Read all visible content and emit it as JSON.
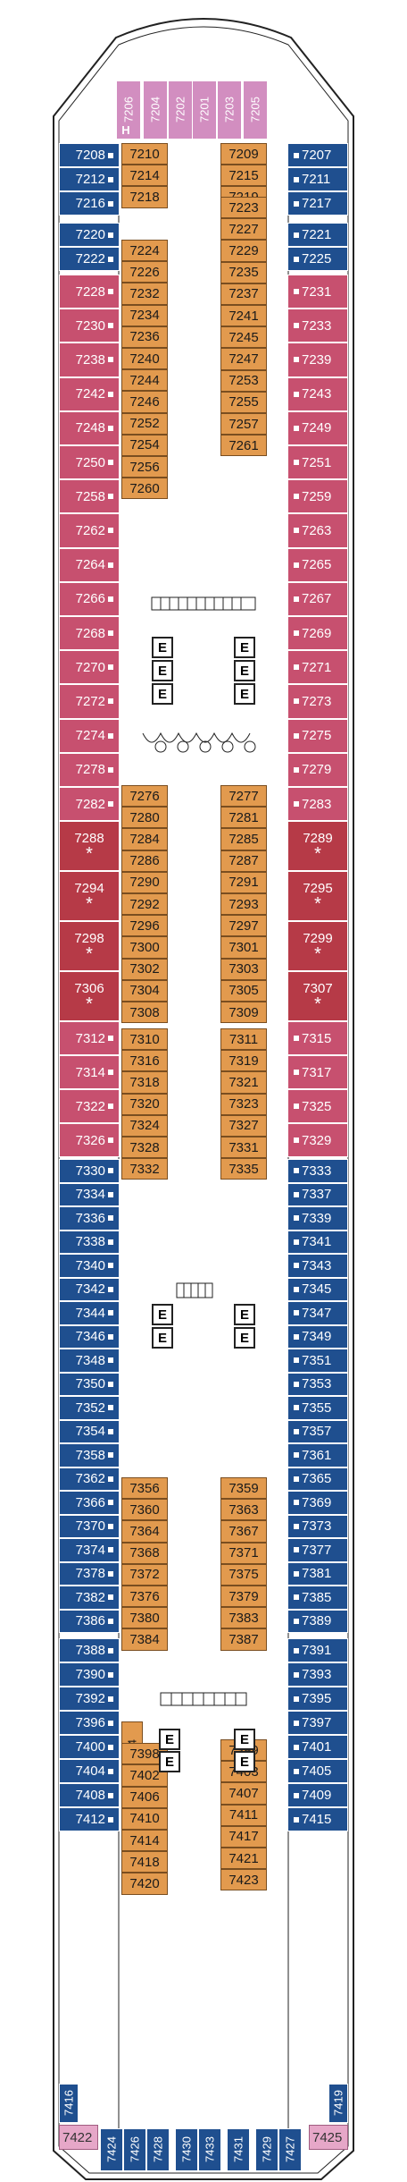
{
  "deck": {
    "colors": {
      "blue": "#1f4f8f",
      "rose": "#c7506f",
      "red": "#b63a47",
      "orange": "#e29a4e",
      "pink": "#e6a7c8"
    },
    "elevator_label": "E",
    "accessible_label": "H",
    "suite_mark": "*",
    "fwd_cabins": [
      "7206",
      "7204",
      "7202",
      "7201",
      "7203",
      "7205"
    ],
    "port_outer": [
      {
        "n": "7208",
        "c": "blue"
      },
      {
        "n": "7212",
        "c": "blue"
      },
      {
        "n": "7216",
        "c": "blue"
      },
      {
        "n": "7220",
        "c": "blue"
      },
      {
        "n": "7222",
        "c": "blue"
      },
      {
        "n": "7228",
        "c": "rose"
      },
      {
        "n": "7230",
        "c": "rose"
      },
      {
        "n": "7238",
        "c": "rose"
      },
      {
        "n": "7242",
        "c": "rose"
      },
      {
        "n": "7248",
        "c": "rose"
      },
      {
        "n": "7250",
        "c": "rose"
      },
      {
        "n": "7258",
        "c": "rose"
      },
      {
        "n": "7262",
        "c": "rose"
      },
      {
        "n": "7264",
        "c": "rose"
      },
      {
        "n": "7266",
        "c": "rose"
      },
      {
        "n": "7268",
        "c": "rose"
      },
      {
        "n": "7270",
        "c": "rose"
      },
      {
        "n": "7272",
        "c": "rose"
      },
      {
        "n": "7274",
        "c": "rose"
      },
      {
        "n": "7278",
        "c": "rose"
      },
      {
        "n": "7282",
        "c": "rose"
      },
      {
        "n": "7288",
        "c": "red"
      },
      {
        "n": "7294",
        "c": "red"
      },
      {
        "n": "7298",
        "c": "red"
      },
      {
        "n": "7306",
        "c": "red"
      },
      {
        "n": "7312",
        "c": "rose"
      },
      {
        "n": "7314",
        "c": "rose"
      },
      {
        "n": "7322",
        "c": "rose"
      },
      {
        "n": "7326",
        "c": "rose"
      },
      {
        "n": "7330",
        "c": "blue"
      },
      {
        "n": "7334",
        "c": "blue"
      },
      {
        "n": "7336",
        "c": "blue"
      },
      {
        "n": "7338",
        "c": "blue"
      },
      {
        "n": "7340",
        "c": "blue"
      },
      {
        "n": "7342",
        "c": "blue"
      },
      {
        "n": "7344",
        "c": "blue"
      },
      {
        "n": "7346",
        "c": "blue"
      },
      {
        "n": "7348",
        "c": "blue"
      },
      {
        "n": "7350",
        "c": "blue"
      },
      {
        "n": "7352",
        "c": "blue"
      },
      {
        "n": "7354",
        "c": "blue"
      },
      {
        "n": "7358",
        "c": "blue"
      },
      {
        "n": "7362",
        "c": "blue"
      },
      {
        "n": "7366",
        "c": "blue"
      },
      {
        "n": "7370",
        "c": "blue"
      },
      {
        "n": "7374",
        "c": "blue"
      },
      {
        "n": "7378",
        "c": "blue"
      },
      {
        "n": "7382",
        "c": "blue"
      },
      {
        "n": "7386",
        "c": "blue"
      },
      {
        "n": "7388",
        "c": "blue"
      },
      {
        "n": "7390",
        "c": "blue"
      },
      {
        "n": "7392",
        "c": "blue"
      },
      {
        "n": "7396",
        "c": "blue"
      },
      {
        "n": "7400",
        "c": "blue"
      },
      {
        "n": "7404",
        "c": "blue"
      },
      {
        "n": "7408",
        "c": "blue"
      },
      {
        "n": "7412",
        "c": "blue"
      }
    ],
    "stbd_outer": [
      {
        "n": "7207",
        "c": "blue"
      },
      {
        "n": "7211",
        "c": "blue"
      },
      {
        "n": "7217",
        "c": "blue"
      },
      {
        "n": "7221",
        "c": "blue"
      },
      {
        "n": "7225",
        "c": "blue"
      },
      {
        "n": "7231",
        "c": "rose"
      },
      {
        "n": "7233",
        "c": "rose"
      },
      {
        "n": "7239",
        "c": "rose"
      },
      {
        "n": "7243",
        "c": "rose"
      },
      {
        "n": "7249",
        "c": "rose"
      },
      {
        "n": "7251",
        "c": "rose"
      },
      {
        "n": "7259",
        "c": "rose"
      },
      {
        "n": "7263",
        "c": "rose"
      },
      {
        "n": "7265",
        "c": "rose"
      },
      {
        "n": "7267",
        "c": "rose"
      },
      {
        "n": "7269",
        "c": "rose"
      },
      {
        "n": "7271",
        "c": "rose"
      },
      {
        "n": "7273",
        "c": "rose"
      },
      {
        "n": "7275",
        "c": "rose"
      },
      {
        "n": "7279",
        "c": "rose"
      },
      {
        "n": "7283",
        "c": "rose"
      },
      {
        "n": "7289",
        "c": "red"
      },
      {
        "n": "7295",
        "c": "red"
      },
      {
        "n": "7299",
        "c": "red"
      },
      {
        "n": "7307",
        "c": "red"
      },
      {
        "n": "7315",
        "c": "rose"
      },
      {
        "n": "7317",
        "c": "rose"
      },
      {
        "n": "7325",
        "c": "rose"
      },
      {
        "n": "7329",
        "c": "rose"
      },
      {
        "n": "7333",
        "c": "blue"
      },
      {
        "n": "7337",
        "c": "blue"
      },
      {
        "n": "7339",
        "c": "blue"
      },
      {
        "n": "7341",
        "c": "blue"
      },
      {
        "n": "7343",
        "c": "blue"
      },
      {
        "n": "7345",
        "c": "blue"
      },
      {
        "n": "7347",
        "c": "blue"
      },
      {
        "n": "7349",
        "c": "blue"
      },
      {
        "n": "7351",
        "c": "blue"
      },
      {
        "n": "7353",
        "c": "blue"
      },
      {
        "n": "7355",
        "c": "blue"
      },
      {
        "n": "7357",
        "c": "blue"
      },
      {
        "n": "7361",
        "c": "blue"
      },
      {
        "n": "7365",
        "c": "blue"
      },
      {
        "n": "7369",
        "c": "blue"
      },
      {
        "n": "7373",
        "c": "blue"
      },
      {
        "n": "7377",
        "c": "blue"
      },
      {
        "n": "7381",
        "c": "blue"
      },
      {
        "n": "7385",
        "c": "blue"
      },
      {
        "n": "7389",
        "c": "blue"
      },
      {
        "n": "7391",
        "c": "blue"
      },
      {
        "n": "7393",
        "c": "blue"
      },
      {
        "n": "7395",
        "c": "blue"
      },
      {
        "n": "7397",
        "c": "blue"
      },
      {
        "n": "7401",
        "c": "blue"
      },
      {
        "n": "7405",
        "c": "blue"
      },
      {
        "n": "7409",
        "c": "blue"
      },
      {
        "n": "7415",
        "c": "blue"
      }
    ],
    "port_inner": [
      "7210",
      "7214",
      "7218",
      "7224",
      "7226",
      "7232",
      "7234",
      "7236",
      "7240",
      "7244",
      "7246",
      "7252",
      "7254",
      "7256",
      "7260",
      "7276",
      "7280",
      "7284",
      "7286",
      "7290",
      "7292",
      "7296",
      "7300",
      "7302",
      "7304",
      "7308",
      "7310",
      "7316",
      "7318",
      "7320",
      "7324",
      "7328",
      "7332",
      "7356",
      "7360",
      "7364",
      "7368",
      "7372",
      "7376",
      "7380",
      "7384",
      "7394",
      "7398",
      "7402",
      "7406",
      "7410",
      "7414",
      "7418",
      "7420"
    ],
    "stbd_inner": [
      "7209",
      "7215",
      "7219",
      "7223",
      "7227",
      "7229",
      "7235",
      "7237",
      "7241",
      "7245",
      "7247",
      "7253",
      "7255",
      "7257",
      "7261",
      "7277",
      "7281",
      "7285",
      "7287",
      "7291",
      "7293",
      "7297",
      "7301",
      "7303",
      "7305",
      "7309",
      "7311",
      "7319",
      "7321",
      "7323",
      "7327",
      "7331",
      "7335",
      "7359",
      "7363",
      "7367",
      "7371",
      "7375",
      "7379",
      "7383",
      "7387",
      "7399",
      "7403",
      "7407",
      "7411",
      "7417",
      "7421",
      "7423"
    ],
    "aft_side": {
      "port": "7416",
      "stbd": "7419",
      "port_pink": "7422",
      "stbd_pink": "7425"
    },
    "aft_cabins": [
      "7424",
      "7426",
      "7428",
      "7430",
      "7433",
      "7431",
      "7429",
      "7427"
    ]
  }
}
